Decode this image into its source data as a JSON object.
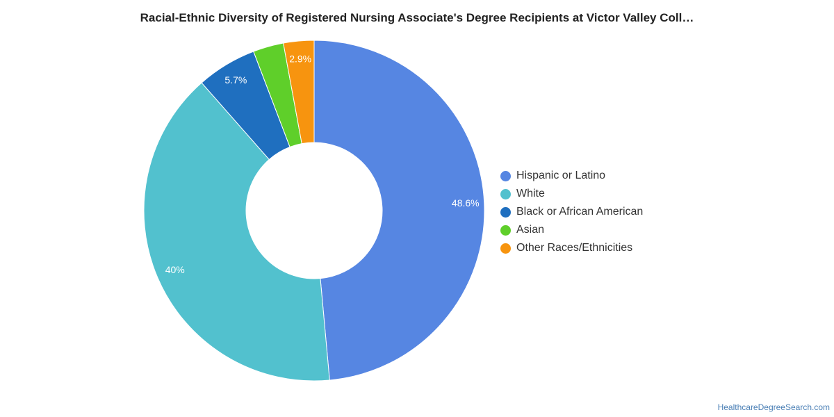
{
  "chart_data": {
    "type": "pie",
    "title": "Racial-Ethnic Diversity of Registered Nursing Associate's Degree Recipients at Victor Valley Coll…",
    "categories": [
      "Hispanic or Latino",
      "White",
      "Black or African American",
      "Asian",
      "Other Races/Ethnicities"
    ],
    "values": [
      48.6,
      40,
      5.7,
      2.9,
      2.9
    ],
    "data_labels": [
      "48.6%",
      "40%",
      "5.7%",
      "",
      "2.9%"
    ],
    "colors": [
      "#5686e2",
      "#52c1ce",
      "#1f6fbf",
      "#5fcf2a",
      "#f7940f"
    ],
    "donut": true,
    "legend_position": "right"
  },
  "source": "HealthcareDegreeSearch.com"
}
